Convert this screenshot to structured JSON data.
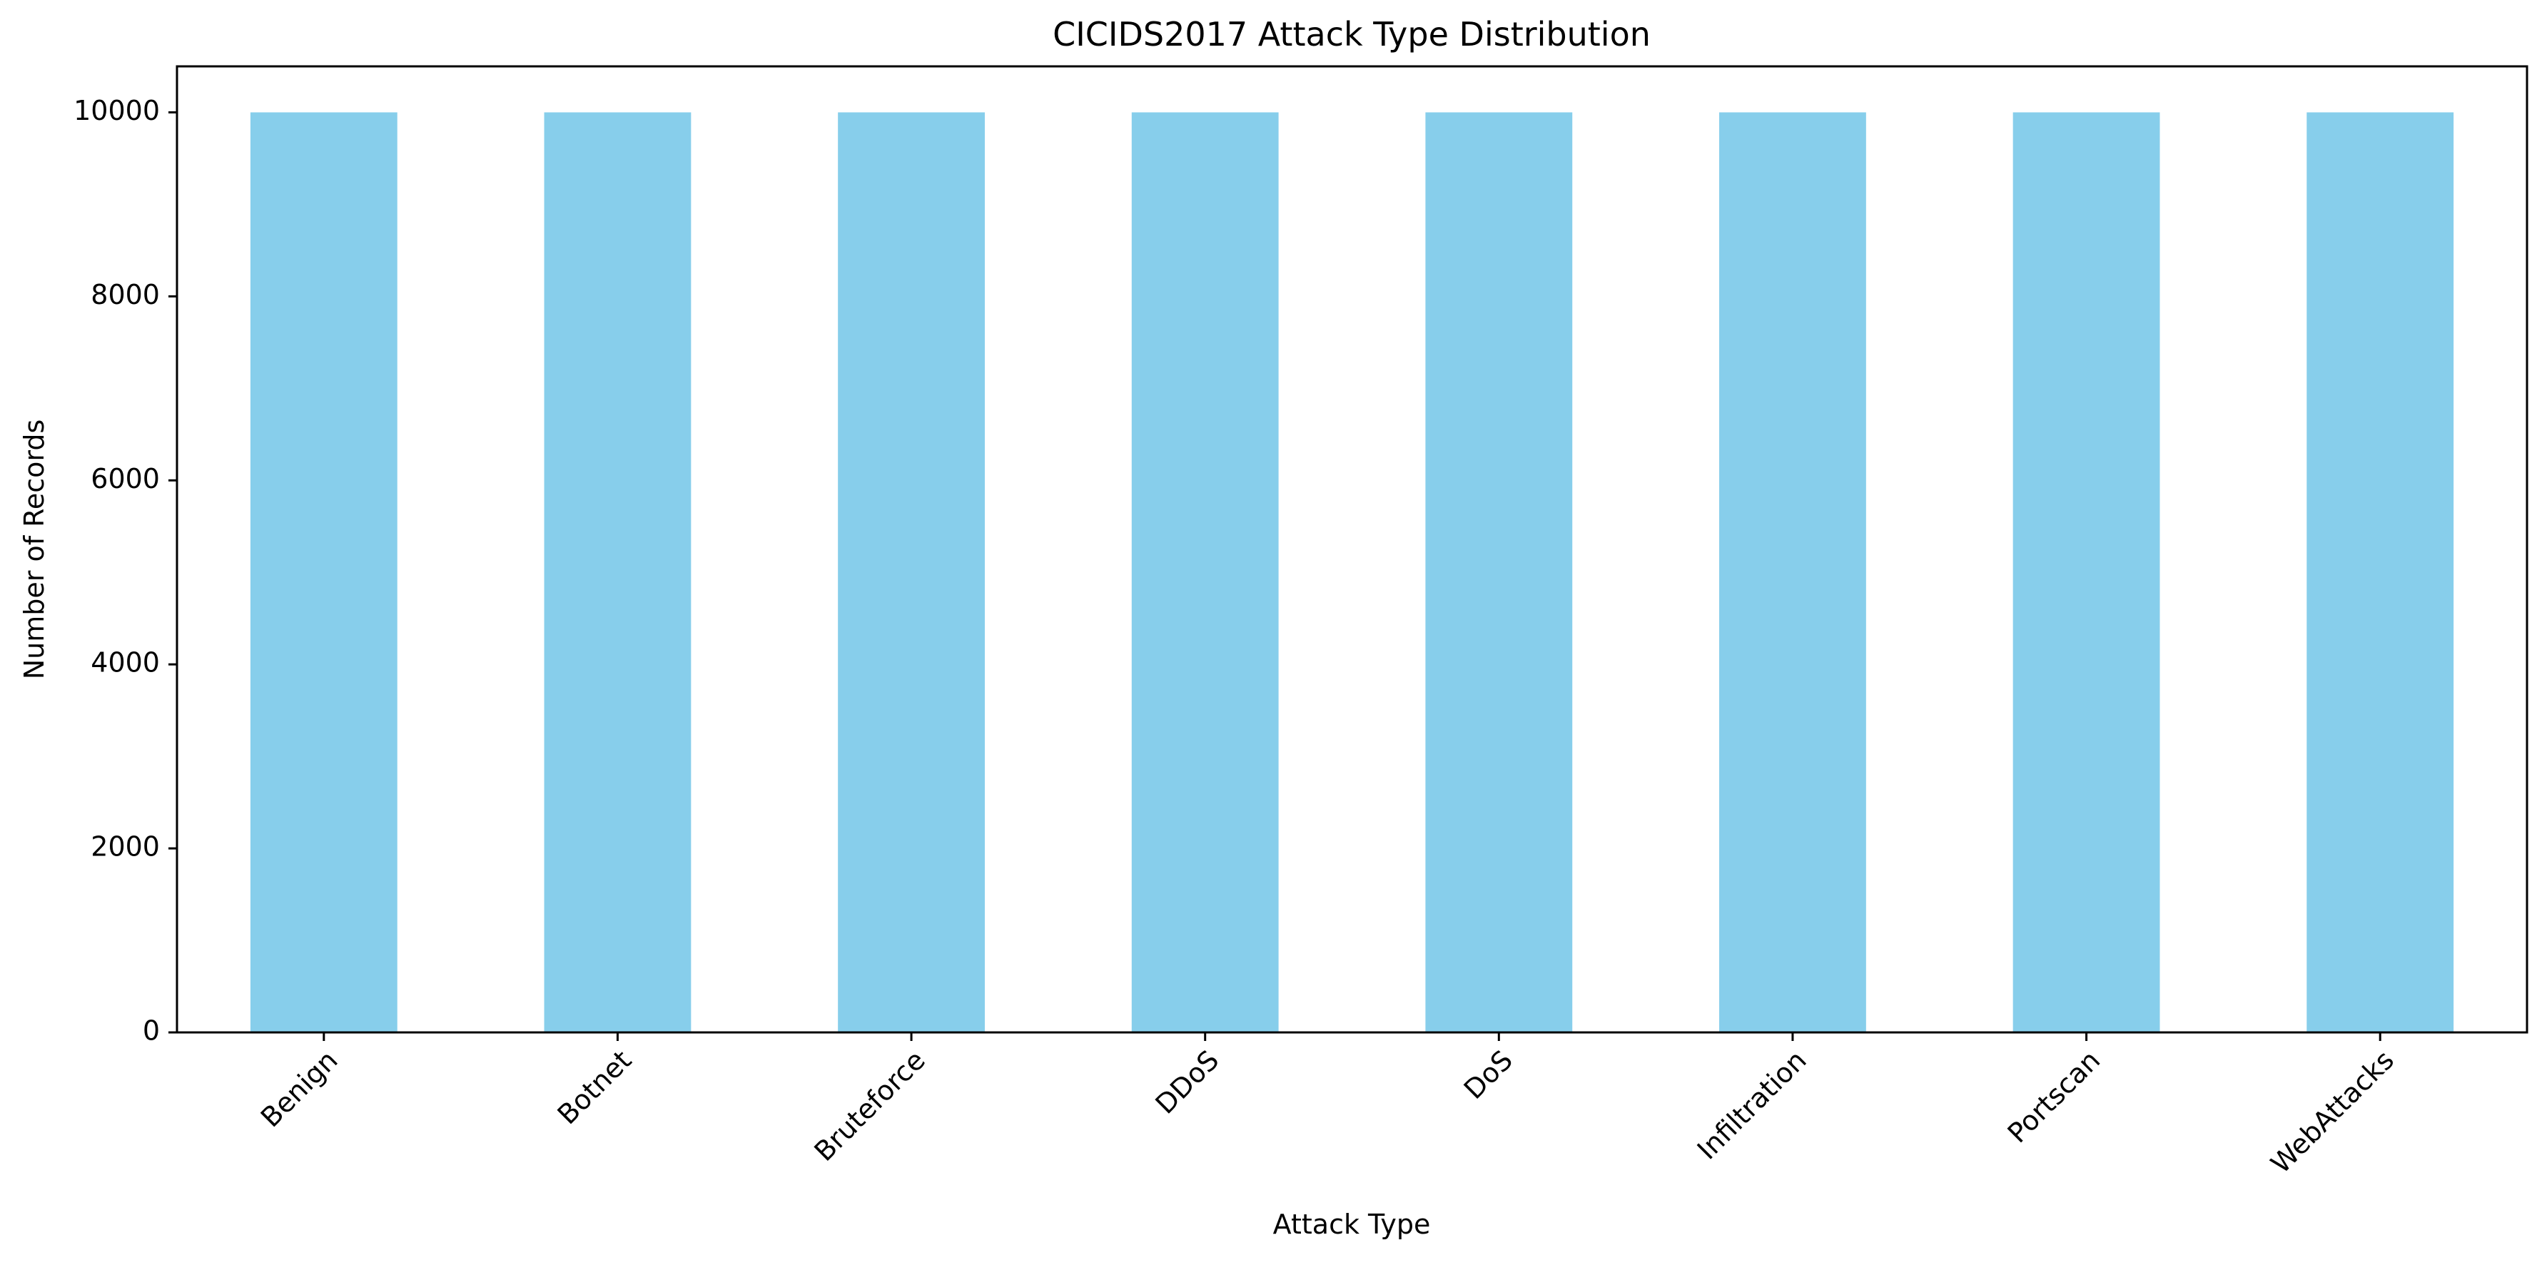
{
  "chart_data": {
    "type": "bar",
    "title": "CICIDS2017 Attack Type Distribution",
    "xlabel": "Attack Type",
    "ylabel": "Number of Records",
    "categories": [
      "Benign",
      "Botnet",
      "Bruteforce",
      "DDoS",
      "DoS",
      "Infiltration",
      "Portscan",
      "WebAttacks"
    ],
    "values": [
      10000,
      10000,
      10000,
      10000,
      10000,
      10000,
      10000,
      10000
    ],
    "ylim": [
      0,
      10500
    ],
    "yticks": [
      0,
      2000,
      4000,
      6000,
      8000,
      10000
    ],
    "bar_color": "#87CEEB",
    "grid": false,
    "legend": "none",
    "xtick_rotation_deg": 45
  }
}
